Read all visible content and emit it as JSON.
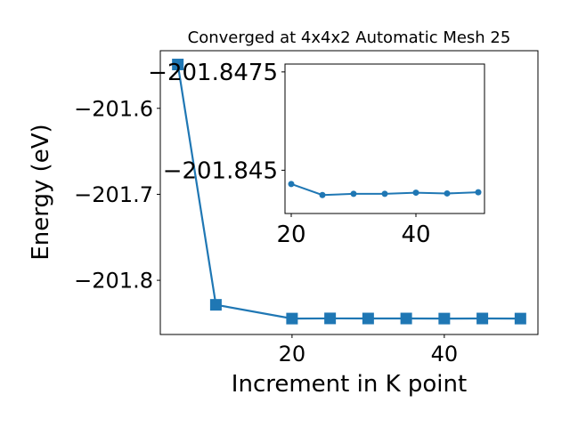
{
  "chart_data": [
    {
      "type": "line",
      "title": "Converged at 4x4x2 Automatic Mesh 25",
      "xlabel": "Increment in K point",
      "ylabel": "Energy (eV)",
      "marker": "square",
      "color": "#1f77b4",
      "xlim": [
        2.7,
        52.3
      ],
      "ylim": [
        -201.863,
        -201.533
      ],
      "xticks": [
        20,
        40
      ],
      "yticks": [
        -201.6,
        -201.7,
        -201.8
      ],
      "series": [
        {
          "x": [
            5,
            10,
            20,
            25,
            30,
            35,
            40,
            45,
            50
          ],
          "y": [
            -201.549,
            -201.8285,
            -201.8445,
            -201.8443,
            -201.8444,
            -201.8444,
            -201.8445,
            -201.8444,
            -201.8445
          ]
        }
      ]
    },
    {
      "type": "line",
      "title": "",
      "xlabel": "",
      "ylabel": "",
      "marker": "circle",
      "color": "#1f77b4",
      "xlim": [
        19.0,
        51.0
      ],
      "ylim": [
        -201.8439,
        -201.8477
      ],
      "xticks": [
        20,
        40
      ],
      "yticks": [
        -201.8475,
        -201.845
      ],
      "series": [
        {
          "x": [
            20,
            25,
            30,
            35,
            40,
            45,
            50
          ],
          "y": [
            -201.84465,
            -201.84437,
            -201.8444,
            -201.8444,
            -201.84443,
            -201.84441,
            -201.84444
          ]
        }
      ]
    }
  ]
}
